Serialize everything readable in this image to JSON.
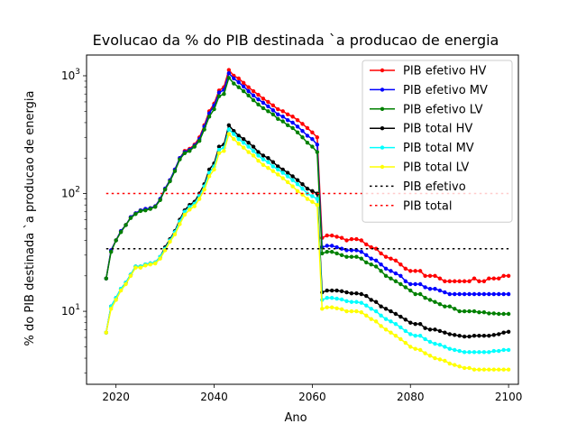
{
  "chart_data": {
    "type": "line",
    "title": "Evolucao da % do PIB destinada `a producao de energia",
    "xlabel": "Ano",
    "ylabel": "% do PIB destinada `a producao de energia",
    "yscale": "log",
    "xlim": [
      2014,
      2102
    ],
    "ylim": [
      2.4,
      1500
    ],
    "xticks": [
      2020,
      2040,
      2060,
      2080,
      2100
    ],
    "yticks": [
      {
        "value": 10,
        "base": "10",
        "exp": "1"
      },
      {
        "value": 100,
        "base": "10",
        "exp": "2"
      },
      {
        "value": 1000,
        "base": "10",
        "exp": "3"
      }
    ],
    "legend_position": "top-right",
    "x": [
      2018,
      2019,
      2020,
      2021,
      2022,
      2023,
      2024,
      2025,
      2026,
      2027,
      2028,
      2029,
      2030,
      2031,
      2032,
      2033,
      2034,
      2035,
      2036,
      2037,
      2038,
      2039,
      2040,
      2041,
      2042,
      2043,
      2044,
      2045,
      2046,
      2047,
      2048,
      2049,
      2050,
      2051,
      2052,
      2053,
      2054,
      2055,
      2056,
      2057,
      2058,
      2059,
      2060,
      2061,
      2062,
      2063,
      2064,
      2065,
      2066,
      2067,
      2068,
      2069,
      2070,
      2071,
      2072,
      2073,
      2074,
      2075,
      2076,
      2077,
      2078,
      2079,
      2080,
      2081,
      2082,
      2083,
      2084,
      2085,
      2086,
      2087,
      2088,
      2089,
      2090,
      2091,
      2092,
      2093,
      2094,
      2095,
      2096,
      2097,
      2098,
      2099,
      2100
    ],
    "series": [
      {
        "name": "PIB efetivo HV",
        "color": "#ff0000",
        "marker": true,
        "values": [
          19,
          33,
          40,
          48,
          54,
          63,
          68,
          72,
          74,
          75,
          78,
          90,
          110,
          130,
          160,
          200,
          230,
          240,
          260,
          300,
          380,
          500,
          580,
          750,
          800,
          1120,
          1000,
          950,
          870,
          800,
          740,
          690,
          640,
          600,
          560,
          520,
          500,
          470,
          450,
          420,
          390,
          360,
          330,
          300,
          42,
          44,
          44,
          43,
          42,
          40,
          41,
          41,
          40,
          37,
          35,
          34,
          31,
          29,
          28,
          27,
          25,
          23,
          22,
          22,
          22,
          20,
          20,
          20,
          19,
          18,
          18,
          18,
          18,
          18,
          18,
          19,
          18,
          18,
          19,
          19,
          19,
          20,
          20
        ]
      },
      {
        "name": "PIB efetivo MV",
        "color": "#0000ff",
        "marker": true,
        "values": [
          19,
          33,
          40,
          48,
          54,
          63,
          68,
          72,
          74,
          75,
          78,
          90,
          110,
          130,
          160,
          200,
          225,
          235,
          255,
          290,
          370,
          480,
          560,
          720,
          760,
          1050,
          950,
          880,
          810,
          740,
          680,
          630,
          590,
          550,
          510,
          470,
          450,
          420,
          400,
          370,
          340,
          310,
          290,
          260,
          35,
          36,
          36,
          35,
          34,
          33,
          33,
          33,
          32,
          30,
          28,
          27,
          25,
          23,
          22,
          21,
          20,
          18,
          17,
          17,
          17,
          16,
          15.5,
          15.5,
          15,
          14.5,
          14,
          14,
          14,
          14,
          14,
          14,
          14,
          14,
          14,
          14,
          14,
          14,
          14
        ]
      },
      {
        "name": "PIB efetivo LV",
        "color": "#008000",
        "marker": true,
        "values": [
          19,
          32,
          40,
          47,
          54,
          62,
          67,
          71,
          72,
          74,
          77,
          88,
          108,
          127,
          155,
          195,
          220,
          230,
          250,
          280,
          350,
          450,
          520,
          670,
          700,
          960,
          860,
          800,
          740,
          680,
          620,
          570,
          530,
          500,
          470,
          430,
          410,
          380,
          360,
          330,
          300,
          270,
          250,
          225,
          31,
          32,
          32,
          31,
          30,
          29,
          29,
          29,
          28,
          26,
          25,
          24,
          22,
          20,
          19,
          18,
          17,
          16,
          15,
          14,
          14,
          13,
          12.5,
          12,
          11.5,
          11,
          11,
          10.5,
          10,
          10,
          10,
          10,
          9.8,
          9.8,
          9.6,
          9.6,
          9.5,
          9.5,
          9.5
        ]
      },
      {
        "name": "PIB total HV",
        "color": "#000000",
        "marker": true,
        "values": [
          6.6,
          11,
          13,
          15.5,
          17.5,
          20.5,
          24,
          24,
          25,
          25.5,
          26,
          29,
          35,
          41,
          48,
          60,
          72,
          80,
          85,
          100,
          120,
          160,
          180,
          250,
          260,
          380,
          340,
          310,
          290,
          270,
          250,
          225,
          210,
          200,
          185,
          170,
          160,
          150,
          140,
          130,
          120,
          110,
          105,
          100,
          14.5,
          15,
          15,
          15,
          14.8,
          14.5,
          14.2,
          14.2,
          14,
          13.5,
          12.5,
          12,
          11,
          10.5,
          10,
          9.5,
          9,
          8.5,
          8,
          7.8,
          7.8,
          7.2,
          7,
          7,
          6.8,
          6.6,
          6.4,
          6.3,
          6.2,
          6.1,
          6.1,
          6.2,
          6.2,
          6.2,
          6.2,
          6.3,
          6.4,
          6.6,
          6.7
        ]
      },
      {
        "name": "PIB total MV",
        "color": "#00ffff",
        "marker": true,
        "values": [
          6.6,
          11,
          13,
          15.5,
          17.5,
          20.5,
          24,
          24,
          25,
          25.5,
          26,
          29,
          34,
          40,
          47,
          58,
          70,
          77,
          82,
          96,
          115,
          150,
          170,
          235,
          245,
          350,
          320,
          290,
          270,
          250,
          230,
          210,
          195,
          185,
          170,
          160,
          150,
          140,
          130,
          120,
          110,
          100,
          95,
          90,
          12.5,
          13,
          13,
          12.8,
          12.6,
          12.2,
          12,
          12,
          11.8,
          11.2,
          10.5,
          10,
          9.2,
          8.6,
          8.2,
          7.8,
          7.3,
          6.8,
          6.4,
          6.2,
          6.2,
          5.8,
          5.5,
          5.3,
          5.2,
          5,
          4.8,
          4.7,
          4.6,
          4.5,
          4.5,
          4.5,
          4.5,
          4.5,
          4.5,
          4.6,
          4.6,
          4.7,
          4.7
        ]
      },
      {
        "name": "PIB total LV",
        "color": "#ffff00",
        "marker": true,
        "values": [
          6.6,
          10.5,
          12.5,
          15,
          17,
          20,
          23.5,
          23.5,
          24.5,
          25,
          25.5,
          28,
          33,
          39,
          45,
          55,
          66,
          73,
          78,
          90,
          108,
          140,
          160,
          220,
          230,
          320,
          290,
          265,
          245,
          225,
          210,
          190,
          175,
          165,
          155,
          145,
          135,
          125,
          115,
          105,
          98,
          90,
          85,
          80,
          10.5,
          10.8,
          10.8,
          10.6,
          10.4,
          10,
          10,
          10,
          9.8,
          9.2,
          8.6,
          8.2,
          7.5,
          7,
          6.6,
          6.2,
          5.8,
          5.4,
          5,
          4.8,
          4.7,
          4.4,
          4.2,
          4,
          3.9,
          3.8,
          3.6,
          3.5,
          3.4,
          3.3,
          3.3,
          3.2,
          3.2,
          3.2,
          3.2,
          3.2,
          3.2,
          3.2,
          3.2
        ]
      },
      {
        "name": "PIB efetivo",
        "color": "#000000",
        "marker": false,
        "dashed": true,
        "x": [
          2018,
          2100
        ],
        "values": [
          34,
          34
        ]
      },
      {
        "name": "PIB total",
        "color": "#ff0000",
        "marker": false,
        "dashed": true,
        "x": [
          2018,
          2100
        ],
        "values": [
          100,
          100
        ]
      }
    ]
  }
}
